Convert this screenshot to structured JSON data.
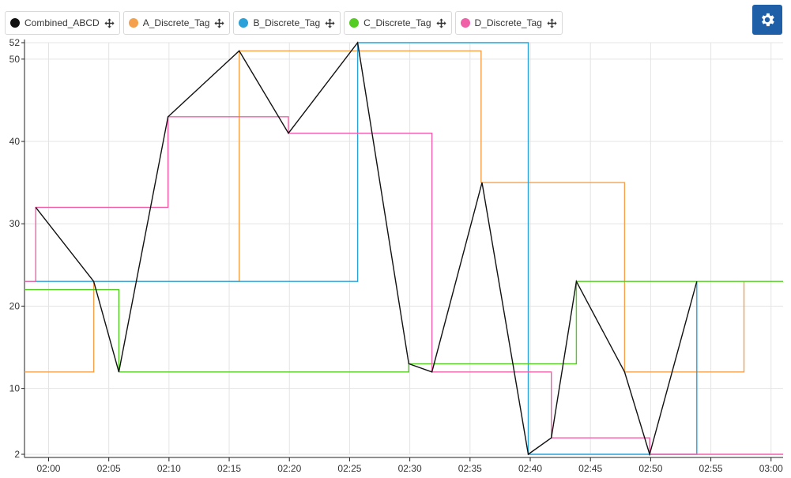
{
  "legend": [
    {
      "label": "Combined_ABCD",
      "color": "#111111"
    },
    {
      "label": "A_Discrete_Tag",
      "color": "#f5a04a"
    },
    {
      "label": "B_Discrete_Tag",
      "color": "#2aa1d8"
    },
    {
      "label": "C_Discrete_Tag",
      "color": "#55cc22"
    },
    {
      "label": "D_Discrete_Tag",
      "color": "#f060a8"
    }
  ],
  "icons": {
    "move": "move-arrows-icon",
    "settings": "gear-icon"
  },
  "chart_data": {
    "type": "line",
    "xlim": [
      "01:58",
      "03:01"
    ],
    "ylim": [
      2,
      52
    ],
    "x_ticks": [
      "02:00",
      "02:05",
      "02:10",
      "02:15",
      "02:20",
      "02:25",
      "02:30",
      "02:35",
      "02:40",
      "02:45",
      "02:50",
      "02:55",
      "03:00"
    ],
    "y_ticks": [
      2,
      10,
      20,
      30,
      40,
      50,
      52
    ],
    "grid": true,
    "legend_position": "top-left",
    "series": [
      {
        "name": "Combined_ABCD",
        "color": "#111111",
        "step": false,
        "points": [
          [
            "01:58:56",
            32
          ],
          [
            "02:03:45",
            23
          ],
          [
            "02:05:50",
            12
          ],
          [
            "02:09:55",
            43
          ],
          [
            "02:15:50",
            51
          ],
          [
            "02:19:55",
            41
          ],
          [
            "02:25:40",
            52
          ],
          [
            "02:29:55",
            13
          ],
          [
            "02:31:50",
            12
          ],
          [
            "02:36:00",
            35
          ],
          [
            "02:39:50",
            2
          ],
          [
            "02:41:45",
            4
          ],
          [
            "02:43:50",
            23
          ],
          [
            "02:47:50",
            12
          ],
          [
            "02:49:55",
            2
          ],
          [
            "02:53:50",
            23
          ]
        ]
      },
      {
        "name": "A_Discrete_Tag",
        "color": "#f5a04a",
        "step": true,
        "points": [
          [
            "01:58:00",
            12
          ],
          [
            "02:03:45",
            23
          ],
          [
            "02:15:50",
            51
          ],
          [
            "02:35:55",
            35
          ],
          [
            "02:47:50",
            12
          ],
          [
            "02:57:45",
            23
          ]
        ]
      },
      {
        "name": "B_Discrete_Tag",
        "color": "#2aa1d8",
        "step": true,
        "points": [
          [
            "01:58:00",
            23
          ],
          [
            "02:25:40",
            52
          ],
          [
            "02:39:50",
            2
          ],
          [
            "02:53:50",
            23
          ]
        ]
      },
      {
        "name": "C_Discrete_Tag",
        "color": "#55cc22",
        "step": true,
        "points": [
          [
            "01:58:00",
            22
          ],
          [
            "02:05:50",
            12
          ],
          [
            "02:29:55",
            13
          ],
          [
            "02:43:50",
            23
          ],
          [
            "03:01:00",
            23
          ]
        ]
      },
      {
        "name": "D_Discrete_Tag",
        "color": "#f060a8",
        "step": true,
        "points": [
          [
            "01:58:00",
            23
          ],
          [
            "01:58:56",
            32
          ],
          [
            "02:09:55",
            43
          ],
          [
            "02:19:55",
            41
          ],
          [
            "02:31:50",
            12
          ],
          [
            "02:41:45",
            4
          ],
          [
            "02:49:55",
            2
          ],
          [
            "03:01:00",
            2
          ]
        ]
      }
    ]
  }
}
